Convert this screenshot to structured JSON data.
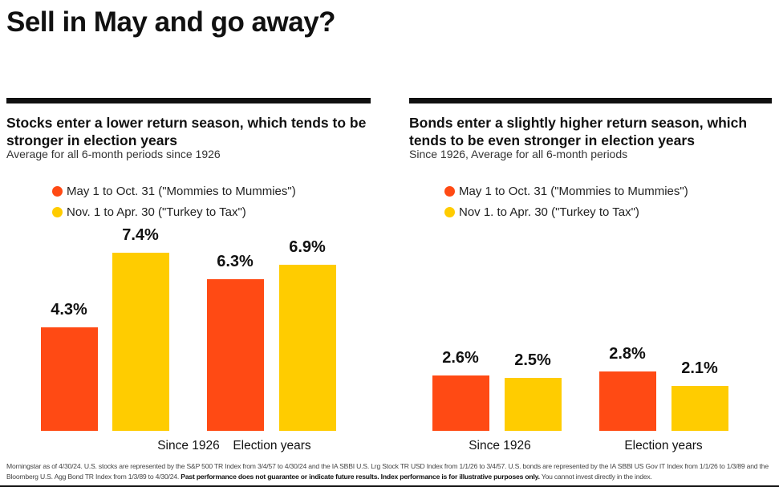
{
  "title": "Sell in May and go away?",
  "colors": {
    "may_oct": "#ff4a14",
    "nov_apr": "#ffcc00"
  },
  "footnote": {
    "text": "Morningstar as of 4/30/24. U.S. stocks are represented by the S&P 500 TR Index from 3/4/57 to 4/30/24 and the IA SBBI U.S. Lrg Stock TR USD Index from 1/1/26 to 3/4/57. U.S. bonds are represented by the IA SBBI US Gov IT Index from 1/1/26 to 1/3/89 and the Bloomberg U.S. Agg Bond TR Index from 1/3/89 to 4/30/24.",
    "bold": "Past performance does not guarantee or indicate future results. Index performance is for illustrative purposes only.",
    "tail": "You cannot invest directly in the index."
  },
  "chart_data": [
    {
      "type": "bar",
      "title": "Stocks enter a lower return season, which tends to be stronger in election years",
      "subtitle": "Average for all 6-month periods since 1926",
      "categories": [
        "Since 1926",
        "Election years"
      ],
      "series": [
        {
          "name": "May 1 to Oct. 31 (\"Mommies to Mummies\")",
          "values": [
            4.3,
            6.3
          ],
          "labels": [
            "4.3%",
            "6.3%"
          ]
        },
        {
          "name": "Nov. 1 to Apr. 30 (\"Turkey to Tax\")",
          "values": [
            7.4,
            6.9
          ],
          "labels": [
            "7.4%",
            "6.9%"
          ]
        }
      ],
      "ylim": [
        0,
        8
      ],
      "legend": "top-left",
      "grid": false
    },
    {
      "type": "bar",
      "title": "Bonds enter a slightly higher return season, which tends to be even stronger in election years",
      "subtitle": "Since 1926, Average for all 6-month periods",
      "categories": [
        "Since 1926",
        "Election years"
      ],
      "series": [
        {
          "name": "May 1 to Oct. 31 (\"Mommies to Mummies\")",
          "values": [
            2.6,
            2.8
          ],
          "labels": [
            "2.6%",
            "2.8%"
          ]
        },
        {
          "name": "Nov 1. to Apr. 30 (\"Turkey to Tax\")",
          "values": [
            2.5,
            2.1
          ],
          "labels": [
            "2.5%",
            "2.1%"
          ]
        }
      ],
      "ylim": [
        0,
        9
      ],
      "legend": "top-left",
      "grid": false
    }
  ]
}
